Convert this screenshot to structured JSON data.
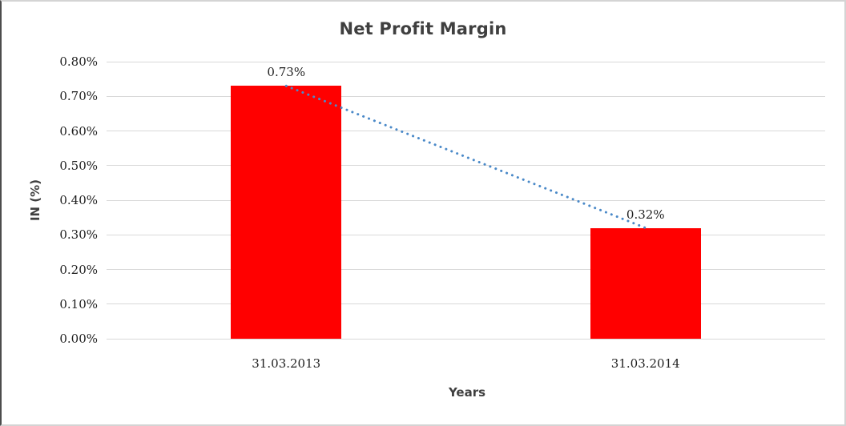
{
  "chart_data": {
    "type": "bar",
    "title": "Net Profit Margin",
    "xlabel": "Years",
    "ylabel": "IN (%)",
    "categories": [
      "31.03.2013",
      "31.03.2014"
    ],
    "values": [
      0.73,
      0.32
    ],
    "data_labels": [
      "0.73%",
      "0.32%"
    ],
    "y_ticks": [
      "0.00%",
      "0.10%",
      "0.20%",
      "0.30%",
      "0.40%",
      "0.50%",
      "0.60%",
      "0.70%",
      "0.80%"
    ],
    "ylim": [
      0,
      0.8
    ],
    "grid": true,
    "legend": "none",
    "bar_color": "#ff0000",
    "gridline_color": "#d9d9d9",
    "trendline": {
      "type": "linear",
      "style": "dotted",
      "color": "#4a89c8"
    }
  }
}
